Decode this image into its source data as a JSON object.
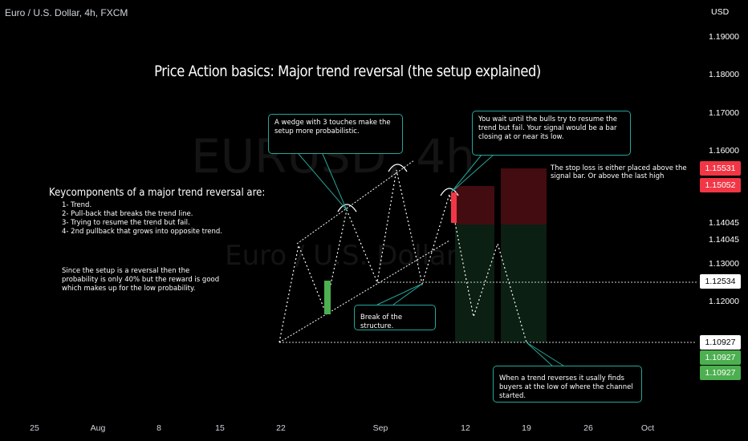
{
  "chart": {
    "symbol": "Euro / U.S. Dollar, 4h, FXCM",
    "title": "Price Action basics: Major trend reversal (the setup explained)",
    "currency": "USD"
  },
  "key_components": {
    "heading": "Keycomponents of a major trend reversal are:",
    "items": [
      "1- Trend.",
      "2- Pull-back that breaks the trend line.",
      "3- Trying to resume the trend but fail.",
      "4- 2nd pullback that grows into opposite trend."
    ]
  },
  "probability_note": "Since the setup is a reversal then the probability is only 40% but the reward is good which makes up for the low probability.",
  "callouts": {
    "wedge": "A wedge with 3 touches make the setup more probabilistic.",
    "bulls": "You wait until the bulls try to resume the trend but fail. Your signal would be a bar closing at or near its low.",
    "break": "Break of the structure.",
    "buyers": "When a trend reverses it usally finds buyers at the low of where the channel started.",
    "stop_loss": "The stop loss is either placed above the signal bar. Or above the last high"
  },
  "price_axis": {
    "labels": [
      "1.19000",
      "1.18000",
      "1.17000",
      "1.16000",
      "1.14045",
      "1.14045",
      "1.13000",
      "1.12000"
    ],
    "tags": [
      {
        "text": "1.15531",
        "bg": "#f23645",
        "fg": "#ffffff"
      },
      {
        "text": "1.15052",
        "bg": "#f23645",
        "fg": "#ffffff"
      },
      {
        "text": "1.12534",
        "bg": "#ffffff",
        "fg": "#000000"
      },
      {
        "text": "1.10927",
        "bg": "#ffffff",
        "fg": "#000000"
      },
      {
        "text": "1.10927",
        "bg": "#4caf50",
        "fg": "#ffffff"
      },
      {
        "text": "1.10927",
        "bg": "#4caf50",
        "fg": "#ffffff"
      }
    ]
  },
  "time_axis": {
    "labels": [
      "25",
      "Aug",
      "8",
      "15",
      "22",
      "Sep",
      "12",
      "19",
      "26",
      "Oct"
    ]
  },
  "watermark": {
    "symbol": "EURUSD, 4h",
    "description": "Euro / U.S. Dollar"
  },
  "colors": {
    "trendline": "#ffffff",
    "callout_border": "#26a69a",
    "bull_bar": "#4caf50",
    "bear_bar": "#f23645",
    "stop_zone": "#4a0d12",
    "target_zone": "#0b1f12"
  }
}
